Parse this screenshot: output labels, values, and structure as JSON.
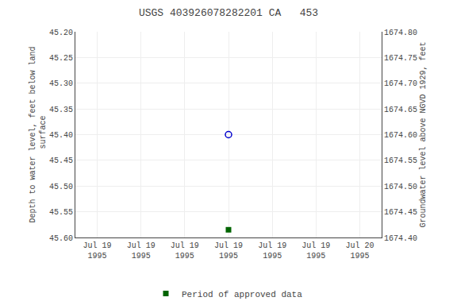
{
  "chart_data": {
    "type": "scatter",
    "title": "USGS 403926078282201 CA   453",
    "ylabel": "Depth to water level, feet below land\n surface",
    "y2label": "Groundwater level above NGVD 1929, feet",
    "categories": [
      "Jul 19\n1995",
      "Jul 19\n1995",
      "Jul 19\n1995",
      "Jul 19\n1995",
      "Jul 19\n1995",
      "Jul 19\n1995",
      "Jul 20\n1995"
    ],
    "series": [
      {
        "color": "#0000cd",
        "marker": "circle-open",
        "values": [
          null,
          null,
          null,
          45.4,
          null,
          null,
          null
        ]
      },
      {
        "name": "Period of approved data",
        "color": "#006400",
        "marker": "square",
        "values": [
          null,
          null,
          null,
          45.585,
          null,
          null,
          null
        ]
      }
    ],
    "ylim": [
      45.6,
      45.2
    ],
    "yticks": [
      {
        "value": 45.2,
        "label": "45.20"
      },
      45.25,
      {
        "value": 45.3,
        "label": "45.30"
      },
      45.35,
      {
        "value": 45.4,
        "label": "45.40"
      },
      45.45,
      {
        "value": 45.5,
        "label": "45.50"
      },
      45.55,
      {
        "value": 45.6,
        "label": "45.60"
      }
    ],
    "y2lim": [
      1674.4,
      1674.8
    ],
    "y2ticks": [
      {
        "value": 1674.4,
        "label": "1674.40"
      },
      1674.45,
      {
        "value": 1674.5,
        "label": "1674.50"
      },
      1674.55,
      {
        "value": 1674.6,
        "label": "1674.60"
      },
      1674.65,
      {
        "value": 1674.7,
        "label": "1674.70"
      },
      1674.75,
      {
        "value": 1674.8,
        "label": "1674.80"
      }
    ],
    "grid": true,
    "legend": "bottom"
  }
}
